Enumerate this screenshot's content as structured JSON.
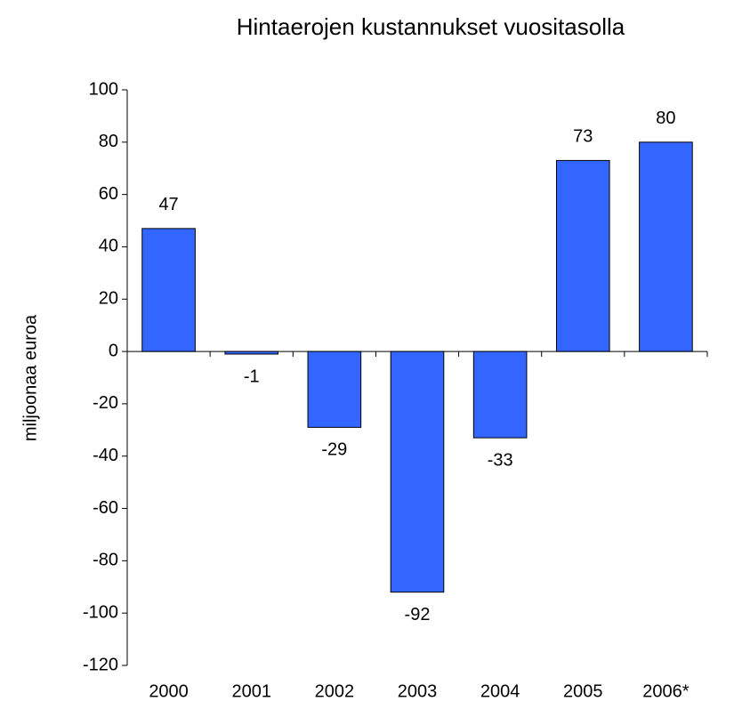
{
  "chart_data": {
    "type": "bar",
    "title": "Hintaerojen kustannukset vuositasolla",
    "y_label": "miljoonaa euroa",
    "categories": [
      "2000",
      "2001",
      "2002",
      "2003",
      "2004",
      "2005",
      "2006*"
    ],
    "values": [
      47,
      -1,
      -29,
      -92,
      -33,
      73,
      80
    ],
    "color": "#3366ff",
    "ylim": [
      -120,
      100
    ],
    "yticks": [
      -120,
      -100,
      -80,
      -60,
      -40,
      -20,
      0,
      20,
      40,
      60,
      80,
      100
    ],
    "grid": false
  }
}
